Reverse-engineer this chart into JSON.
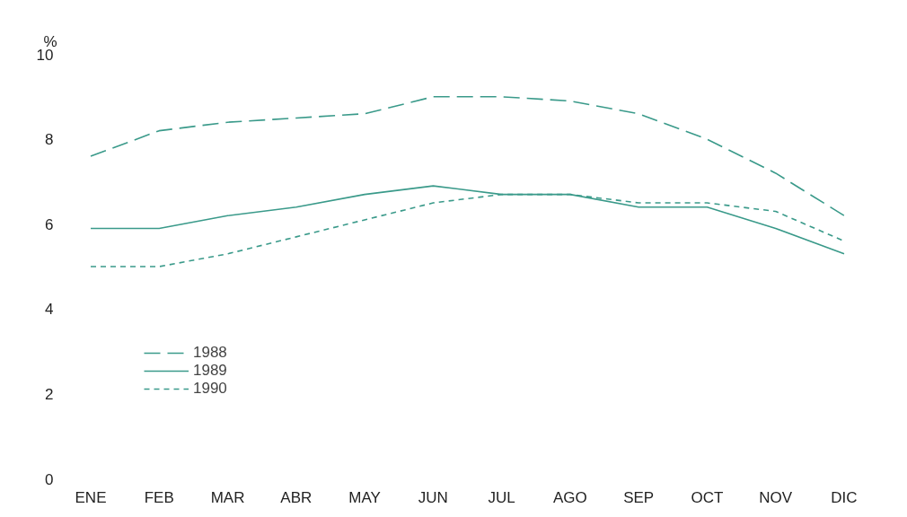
{
  "chart_data": {
    "type": "line",
    "ylabel": "%",
    "categories": [
      "ENE",
      "FEB",
      "MAR",
      "ABR",
      "MAY",
      "JUN",
      "JUL",
      "AGO",
      "SEP",
      "OCT",
      "NOV",
      "DIC"
    ],
    "series": [
      {
        "name": "1988",
        "color": "#3a9a8a",
        "line_style": "dashed",
        "values": [
          7.6,
          8.2,
          8.4,
          8.5,
          8.6,
          9.0,
          9.0,
          8.9,
          8.6,
          8.0,
          7.2,
          6.2
        ]
      },
      {
        "name": "1989",
        "color": "#3a9a8a",
        "line_style": "solid",
        "values": [
          5.9,
          5.9,
          6.2,
          6.4,
          6.7,
          6.9,
          6.7,
          6.7,
          6.4,
          6.4,
          5.9,
          5.3
        ]
      },
      {
        "name": "1990",
        "color": "#3a9a8a",
        "line_style": "dotted",
        "values": [
          5.0,
          5.0,
          5.3,
          5.7,
          6.1,
          6.5,
          6.7,
          6.7,
          6.5,
          6.5,
          6.3,
          5.6
        ]
      }
    ],
    "ylim": [
      0,
      10
    ],
    "yticks": [
      0,
      2,
      4,
      6,
      8,
      10
    ],
    "grid": false,
    "legend": "bottom left",
    "marker": "none"
  }
}
